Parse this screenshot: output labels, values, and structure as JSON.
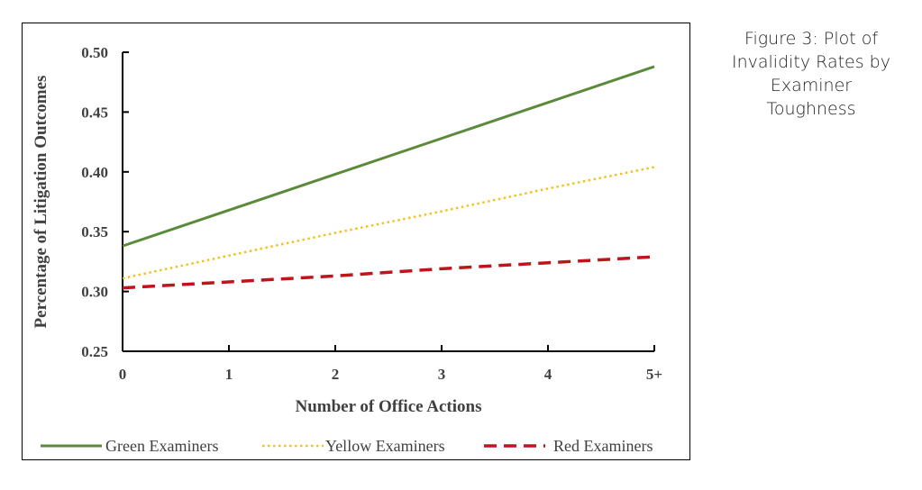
{
  "caption": [
    "Figure 3: Plot of",
    "Invalidity Rates by",
    "Examiner",
    "Toughness"
  ],
  "chart_data": {
    "type": "line",
    "xlabel": "Number of Office Actions",
    "ylabel": "Percentage of Litigation Outcomes",
    "categories": [
      "0",
      "1",
      "2",
      "3",
      "4",
      "5+"
    ],
    "ylim": [
      0.25,
      0.5
    ],
    "yticks": [
      "0.25",
      "0.30",
      "0.35",
      "0.40",
      "0.45",
      "0.50"
    ],
    "grid": false,
    "legend_position": "bottom",
    "series": [
      {
        "name": "Green Examiners",
        "color": "#5a8a3a",
        "style": "solid",
        "values": [
          0.338,
          0.368,
          0.398,
          0.428,
          0.458,
          0.488
        ]
      },
      {
        "name": "Yellow Examiners",
        "color": "#f2c21c",
        "style": "dotted",
        "values": [
          0.311,
          0.33,
          0.349,
          0.367,
          0.386,
          0.404
        ]
      },
      {
        "name": "Red Examiners",
        "color": "#c0141c",
        "style": "dashed",
        "values": [
          0.303,
          0.308,
          0.313,
          0.319,
          0.324,
          0.329
        ]
      }
    ]
  }
}
